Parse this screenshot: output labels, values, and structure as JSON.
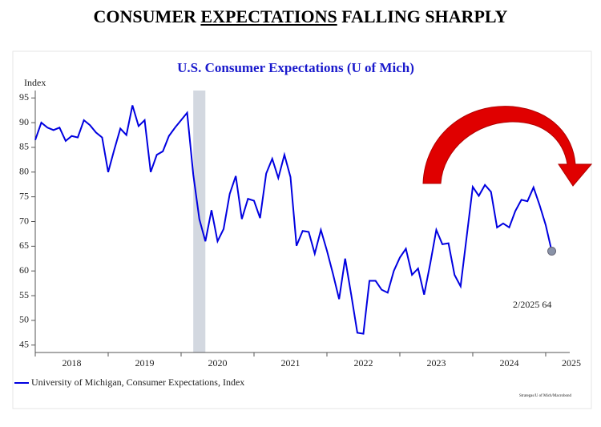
{
  "headline": [
    "CONSUMER ",
    "EXPECTATIONS",
    " FALLING SHARPLY"
  ],
  "chart_data": {
    "type": "line",
    "title": "U.S. Consumer Expectations (U of Mich)",
    "y_label": "Index",
    "annotation": "2/2025 64",
    "source": "Strategas/U of Mich/Macrobond",
    "shaded_regions": [
      [
        2020.167,
        2020.333
      ]
    ],
    "xlim": [
      2018,
      2025.33
    ],
    "xticks": [
      2018,
      2019,
      2020,
      2021,
      2022,
      2023,
      2024,
      2025
    ],
    "ylim": [
      43.5,
      96.5
    ],
    "yticks": [
      45,
      50,
      55,
      60,
      65,
      70,
      75,
      80,
      85,
      90,
      95
    ],
    "x": [
      2018,
      2018.083,
      2018.167,
      2018.25,
      2018.333,
      2018.417,
      2018.5,
      2018.583,
      2018.667,
      2018.75,
      2018.833,
      2018.917,
      2019,
      2019.083,
      2019.167,
      2019.25,
      2019.333,
      2019.417,
      2019.5,
      2019.583,
      2019.667,
      2019.75,
      2019.833,
      2019.917,
      2020,
      2020.083,
      2020.167,
      2020.25,
      2020.333,
      2020.417,
      2020.5,
      2020.583,
      2020.667,
      2020.75,
      2020.833,
      2020.917,
      2021,
      2021.083,
      2021.167,
      2021.25,
      2021.333,
      2021.417,
      2021.5,
      2021.583,
      2021.667,
      2021.75,
      2021.833,
      2021.917,
      2022,
      2022.083,
      2022.167,
      2022.25,
      2022.333,
      2022.417,
      2022.5,
      2022.583,
      2022.667,
      2022.75,
      2022.833,
      2022.917,
      2023,
      2023.083,
      2023.167,
      2023.25,
      2023.333,
      2023.417,
      2023.5,
      2023.583,
      2023.667,
      2023.75,
      2023.833,
      2023.917,
      2024,
      2024.083,
      2024.167,
      2024.25,
      2024.333,
      2024.417,
      2024.5,
      2024.583,
      2024.667,
      2024.75,
      2024.833,
      2024.917,
      2025,
      2025.083
    ],
    "series": [
      {
        "name": "University of Michigan, Consumer Expectations, Index",
        "color": "#0000e0",
        "values": [
          86.5,
          90,
          89,
          88.5,
          89,
          86.3,
          87.3,
          87,
          90.5,
          89.5,
          88,
          87,
          80,
          84.5,
          88.8,
          87.5,
          93.5,
          89.3,
          90.5,
          80,
          83.5,
          84.2,
          87.3,
          89,
          90.5,
          92,
          79.5,
          70.5,
          66,
          72.3,
          66,
          68.5,
          75.6,
          79.2,
          70.5,
          74.6,
          74.2,
          70.7,
          79.7,
          82.7,
          78.8,
          83.5,
          79,
          65.1,
          68.1,
          67.9,
          63.5,
          68.3,
          64.1,
          59.4,
          54.3,
          62.5,
          55.2,
          47.5,
          47.3,
          58,
          58,
          56.2,
          55.6,
          60,
          62.7,
          64.5,
          59.2,
          60.5,
          55.2,
          61.5,
          68.3,
          65.4,
          65.6,
          59.2,
          56.9,
          67,
          77,
          75.2,
          77.4,
          76,
          68.8,
          69.6,
          68.8,
          72.1,
          74.4,
          74.1,
          76.9,
          73.3,
          69.3,
          64
        ]
      }
    ]
  }
}
